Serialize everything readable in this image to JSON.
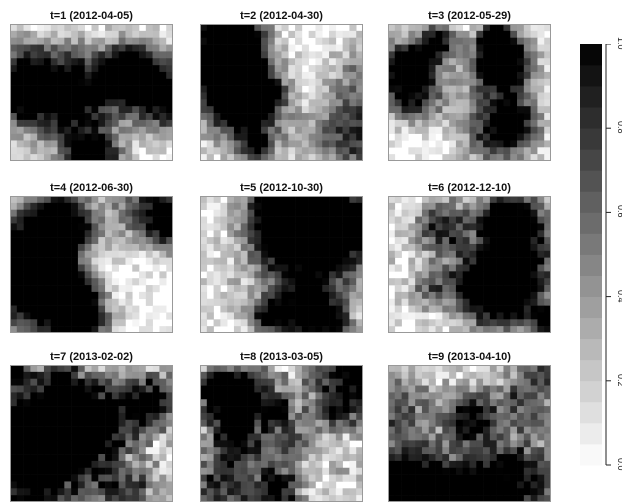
{
  "chart_data": {
    "type": "heatmap",
    "colormap": {
      "low_color": "#ffffff",
      "high_color": "#000000"
    },
    "panels": [
      {
        "title": "t=1  (2012-04-05)"
      },
      {
        "title": "t=2  (2012-04-30)"
      },
      {
        "title": "t=3  (2012-05-29)"
      },
      {
        "title": "t=4  (2012-06-30)"
      },
      {
        "title": "t=5  (2012-10-30)"
      },
      {
        "title": "t=6  (2012-12-10)"
      },
      {
        "title": "t=7  (2013-02-02)"
      },
      {
        "title": "t=8  (2013-03-05)"
      },
      {
        "title": "t=9  (2013-04-10)"
      }
    ],
    "colorbar": {
      "range": [
        0,
        1
      ],
      "levels": 20,
      "ticks": [
        {
          "value": 0.0,
          "label": "0.0"
        },
        {
          "value": 0.2,
          "label": "0.2"
        },
        {
          "value": 0.4,
          "label": "0.4"
        },
        {
          "value": 0.6,
          "label": "0.6"
        },
        {
          "value": 0.8,
          "label": "0.8"
        },
        {
          "value": 1.0,
          "label": "1.0"
        }
      ]
    }
  }
}
